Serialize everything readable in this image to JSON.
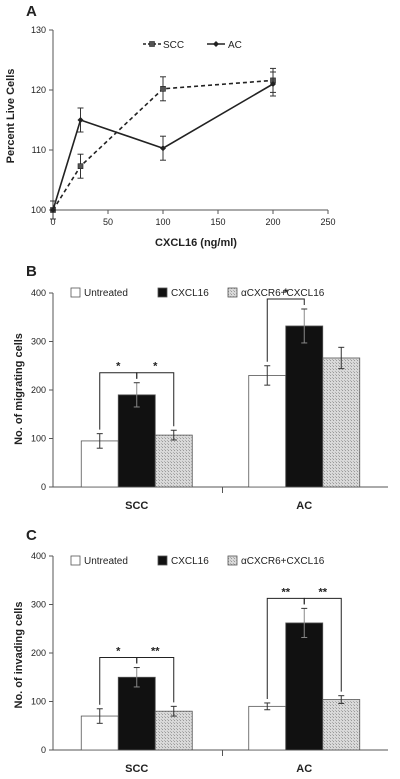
{
  "chart_data": [
    {
      "panel": "A",
      "type": "line",
      "xlabel": "CXCL16 (ng/ml)",
      "ylabel": "Percent Live Cells",
      "xlim": [
        0,
        250
      ],
      "ylim": [
        100,
        130
      ],
      "xticks": [
        0,
        50,
        100,
        150,
        200,
        250
      ],
      "yticks": [
        100,
        110,
        120,
        130
      ],
      "legend_position": "top-center",
      "series": [
        {
          "name": "SCC",
          "style": "dashed-square",
          "x": [
            0,
            25,
            100,
            200
          ],
          "y": [
            100,
            107.3,
            120.2,
            121.6
          ],
          "err": [
            1.5,
            2.0,
            2.0,
            2.0
          ]
        },
        {
          "name": "AC",
          "style": "solid-diamond",
          "x": [
            0,
            25,
            100,
            200
          ],
          "y": [
            100,
            115.0,
            110.3,
            121.0
          ],
          "err": [
            1.5,
            2.0,
            2.0,
            2.0
          ]
        }
      ]
    },
    {
      "panel": "B",
      "type": "bar",
      "ylabel": "No. of migrating cells",
      "ylim": [
        0,
        400
      ],
      "yticks": [
        0,
        100,
        200,
        300,
        400
      ],
      "categories": [
        "SCC",
        "AC"
      ],
      "legend_position": "top",
      "series": [
        {
          "name": "Untreated",
          "fill": "#ffffff",
          "values": [
            95,
            230
          ],
          "err": [
            15,
            20
          ]
        },
        {
          "name": "CXCL16",
          "fill": "#111111",
          "values": [
            190,
            332
          ],
          "err": [
            25,
            35
          ]
        },
        {
          "name": "αCXCR6+CXCL16",
          "fill": "#cccccc",
          "values": [
            107,
            266
          ],
          "err": [
            10,
            22
          ]
        }
      ],
      "significance": [
        {
          "category": "SCC",
          "from": "Untreated",
          "to": "CXCL16",
          "label": "*"
        },
        {
          "category": "SCC",
          "from": "CXCL16",
          "to": "αCXCR6+CXCL16",
          "label": "*"
        },
        {
          "category": "AC",
          "from": "Untreated",
          "to": "CXCL16",
          "label": "*"
        }
      ]
    },
    {
      "panel": "C",
      "type": "bar",
      "ylabel": "No. of invading cells",
      "ylim": [
        0,
        400
      ],
      "yticks": [
        0,
        100,
        200,
        300,
        400
      ],
      "categories": [
        "SCC",
        "AC"
      ],
      "legend_position": "top",
      "series": [
        {
          "name": "Untreated",
          "fill": "#ffffff",
          "values": [
            70,
            90
          ],
          "err": [
            15,
            7
          ]
        },
        {
          "name": "CXCL16",
          "fill": "#111111",
          "values": [
            150,
            262
          ],
          "err": [
            20,
            30
          ]
        },
        {
          "name": "αCXCR6+CXCL16",
          "fill": "#cccccc",
          "values": [
            80,
            104
          ],
          "err": [
            10,
            8
          ]
        }
      ],
      "significance": [
        {
          "category": "SCC",
          "from": "Untreated",
          "to": "CXCL16",
          "label": "*"
        },
        {
          "category": "SCC",
          "from": "CXCL16",
          "to": "αCXCR6+CXCL16",
          "label": "**"
        },
        {
          "category": "AC",
          "from": "Untreated",
          "to": "CXCL16",
          "label": "**"
        },
        {
          "category": "AC",
          "from": "CXCL16",
          "to": "αCXCR6+CXCL16",
          "label": "**"
        }
      ]
    }
  ]
}
